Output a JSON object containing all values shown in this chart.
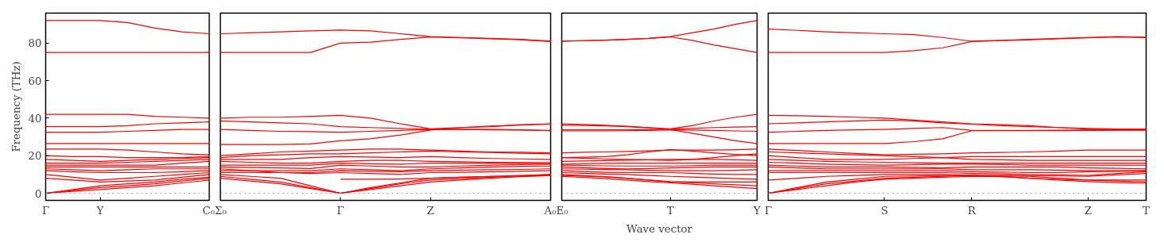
{
  "chart_data": [
    {
      "type": "line",
      "ylabel": "Frequency (THz)",
      "ylim": [
        -3.8,
        96
      ],
      "yticks": [
        0,
        20,
        40,
        60,
        80
      ],
      "categories": [
        "Γ",
        null,
        "Y",
        null,
        null,
        null,
        "C₀"
      ],
      "grid": false,
      "ref_lines": [
        {
          "axis": "y",
          "value": 0,
          "color": "#8080ff",
          "line_style": "dotted"
        }
      ],
      "series": [
        {
          "color": "#ff0000",
          "values": [
            92,
            92,
            92,
            91,
            88,
            86,
            85
          ]
        },
        {
          "color": "#ff0000",
          "values": [
            75,
            75,
            75,
            75,
            75,
            75,
            75
          ]
        },
        {
          "color": "#ff0000",
          "values": [
            42,
            42,
            42,
            42,
            41,
            40.5,
            40
          ]
        },
        {
          "color": "#ff0000",
          "values": [
            35.5,
            35.5,
            35.5,
            36,
            37,
            37.5,
            38
          ]
        },
        {
          "color": "#ff0000",
          "values": [
            32.5,
            32.5,
            32.5,
            33,
            33.5,
            34,
            34
          ]
        },
        {
          "color": "#ff0000",
          "values": [
            26.5,
            26.5,
            26.5,
            26.5,
            26.5,
            26.5,
            26.5
          ]
        },
        {
          "color": "#ff0000",
          "values": [
            23.5,
            23.5,
            23.5,
            23,
            22,
            21,
            20.5
          ]
        },
        {
          "color": "#ff0000",
          "values": [
            20,
            19.5,
            19.5,
            19,
            19,
            19,
            19.5
          ]
        },
        {
          "color": "#ff0000",
          "values": [
            18,
            17.5,
            17,
            17.5,
            18,
            18.5,
            19
          ]
        },
        {
          "color": "#ff0000",
          "values": [
            16,
            16,
            16,
            16.5,
            17,
            17.5,
            18
          ]
        },
        {
          "color": "#ff0000",
          "values": [
            15,
            15,
            15,
            15,
            15,
            16,
            17
          ]
        },
        {
          "color": "#ff0000",
          "values": [
            14,
            14,
            14,
            14,
            14,
            14,
            14
          ]
        },
        {
          "color": "#ff0000",
          "values": [
            13,
            12.5,
            12,
            12.5,
            13,
            13,
            13
          ]
        },
        {
          "color": "#ff0000",
          "values": [
            12,
            11.5,
            11,
            11,
            11,
            11.5,
            12
          ]
        },
        {
          "color": "#ff0000",
          "values": [
            10,
            8.5,
            7,
            8,
            9,
            10,
            11
          ]
        },
        {
          "color": "#ff0000",
          "values": [
            8,
            7,
            6,
            6.5,
            7,
            8.5,
            10
          ]
        },
        {
          "color": "#ff0000",
          "values": [
            0,
            2,
            4,
            5,
            6,
            7.5,
            8.5
          ]
        },
        {
          "color": "#ff0000",
          "values": [
            0,
            1.5,
            3,
            4,
            5,
            6.5,
            8
          ]
        },
        {
          "color": "#ff0000",
          "values": [
            0,
            1,
            2,
            3,
            4,
            5.5,
            7
          ]
        }
      ]
    },
    {
      "type": "line",
      "ylim": [
        -3.8,
        96
      ],
      "tick_labels": "x",
      "categories": [
        "Σ₀",
        null,
        null,
        null,
        "Γ",
        null,
        null,
        "Z",
        null,
        null,
        null,
        "A₀"
      ],
      "grid": false,
      "ref_lines": [
        {
          "axis": "y",
          "value": 0,
          "color": "#8080ff",
          "line_style": "dotted"
        }
      ],
      "series": [
        {
          "color": "#ff0000",
          "values": [
            85,
            85.5,
            86,
            86.5,
            87,
            86.5,
            85,
            83.5,
            83,
            82.5,
            82,
            81
          ]
        },
        {
          "color": "#ff0000",
          "values": [
            75,
            75,
            75,
            75,
            80,
            80.5,
            82,
            83.3,
            82.8,
            82.3,
            81.8,
            80.8
          ]
        },
        {
          "color": "#ff0000",
          "values": [
            40,
            40.5,
            40.5,
            41,
            41.5,
            40,
            37,
            34.3,
            35,
            35.5,
            36.5,
            37
          ]
        },
        {
          "color": "#ff0000",
          "values": [
            38.5,
            38,
            37.5,
            37,
            35.5,
            35,
            34.5,
            34.1,
            34,
            33.8,
            33.7,
            33.5
          ]
        },
        {
          "color": "#ff0000",
          "values": [
            34,
            33.5,
            33,
            32.8,
            32.5,
            33,
            33.5,
            33.9,
            34,
            34,
            33.8,
            33.3
          ]
        },
        {
          "color": "#ff0000",
          "values": [
            26,
            26,
            26,
            26.3,
            28,
            29,
            31,
            33.7,
            35,
            35.8,
            36.3,
            36.8
          ]
        },
        {
          "color": "#ff0000",
          "values": [
            20,
            21,
            22,
            22.5,
            23,
            23.5,
            23.5,
            23,
            22.5,
            22,
            21.8,
            21.5
          ]
        },
        {
          "color": "#ff0000",
          "values": [
            19,
            20,
            20.5,
            21,
            21,
            21.5,
            22,
            22.5,
            22,
            21.7,
            21.3,
            21
          ]
        },
        {
          "color": "#ff0000",
          "values": [
            18,
            18,
            18,
            19,
            19.5,
            19.3,
            19,
            19.5,
            19,
            18.5,
            18.3,
            18
          ]
        },
        {
          "color": "#ff0000",
          "values": [
            17,
            16.5,
            16,
            16,
            17,
            17.5,
            17.5,
            17,
            16.8,
            16.5,
            16.3,
            16.2
          ]
        },
        {
          "color": "#ff0000",
          "values": [
            15,
            15,
            15,
            15,
            16,
            15.7,
            15.5,
            16,
            16,
            16,
            16,
            15.8
          ]
        },
        {
          "color": "#ff0000",
          "values": [
            14,
            13.7,
            13.5,
            13.2,
            15,
            14.5,
            14,
            14,
            14.5,
            15,
            15.3,
            15.5
          ]
        },
        {
          "color": "#ff0000",
          "values": [
            12,
            12,
            12,
            12,
            13,
            12.5,
            12,
            13,
            13.5,
            14,
            14.3,
            14.5
          ]
        },
        {
          "color": "#ff0000",
          "values": [
            11,
            11,
            11,
            11,
            12,
            11.7,
            11.5,
            12,
            12.3,
            12.5,
            12.7,
            13
          ]
        },
        {
          "color": "#ff0000",
          "values": [
            13,
            12,
            11,
            10.5,
            11,
            10.5,
            10,
            11,
            11.2,
            11.5,
            11.7,
            12
          ]
        },
        {
          "color": "#ff0000",
          "values": [
            10,
            9,
            8,
            4,
            0,
            2.5,
            5,
            7,
            7.8,
            8.5,
            9.3,
            10
          ]
        },
        {
          "color": "#ff0000",
          "values": [
            9,
            7.5,
            6,
            3,
            0,
            2,
            4,
            6,
            7,
            8,
            8.8,
            9.5
          ]
        },
        {
          "color": "#ff0000",
          "values": [
            8,
            6.5,
            5,
            2.5,
            0,
            3,
            5.5,
            8,
            8.5,
            9,
            9.2,
            9.4
          ]
        },
        {
          "color": "#ff0000",
          "values": [
            null,
            null,
            null,
            null,
            7.5,
            7.5,
            7.6,
            8,
            8.5,
            9,
            9.5,
            10
          ]
        }
      ]
    },
    {
      "type": "line",
      "xlabel": "Wave vector",
      "ylim": [
        -3.8,
        96
      ],
      "tick_labels": "x",
      "categories": [
        "E₀",
        null,
        null,
        null,
        null,
        "T",
        null,
        null,
        null,
        "Y"
      ],
      "grid": false,
      "ref_lines": [
        {
          "axis": "y",
          "value": 0,
          "color": "#8080ff",
          "line_style": "dotted"
        }
      ],
      "series": [
        {
          "color": "#ff0000",
          "values": [
            81,
            81.3,
            81.6,
            82,
            82.5,
            83.5,
            85.5,
            87.5,
            90,
            92
          ]
        },
        {
          "color": "#ff0000",
          "values": [
            81,
            81.3,
            81.6,
            82,
            82.5,
            83.3,
            81.5,
            79,
            77,
            75
          ]
        },
        {
          "color": "#ff0000",
          "values": [
            37,
            36.6,
            36.2,
            35.7,
            35,
            34.3,
            36,
            38.5,
            40.5,
            42
          ]
        },
        {
          "color": "#ff0000",
          "values": [
            33.8,
            33.8,
            33.8,
            33.8,
            33.9,
            34.1,
            34.5,
            35,
            35.3,
            35.5
          ]
        },
        {
          "color": "#ff0000",
          "values": [
            33.2,
            33.2,
            33.2,
            33.3,
            33.5,
            33.8,
            33.7,
            33.5,
            33.2,
            33
          ]
        },
        {
          "color": "#ff0000",
          "values": [
            36.3,
            36.1,
            35.9,
            35.5,
            34.8,
            33.9,
            32,
            30,
            28,
            26.5
          ]
        },
        {
          "color": "#ff0000",
          "values": [
            21.5,
            21.8,
            22,
            22.3,
            22.6,
            23,
            23,
            23,
            23.2,
            23.5
          ]
        },
        {
          "color": "#ff0000",
          "values": [
            19,
            19.2,
            19.5,
            20.5,
            22,
            23.2,
            22.5,
            21.5,
            20.7,
            20
          ]
        },
        {
          "color": "#ff0000",
          "values": [
            19,
            18.7,
            18.3,
            18,
            17.8,
            17.5,
            18,
            19,
            20,
            21
          ]
        },
        {
          "color": "#ff0000",
          "values": [
            17,
            17.2,
            17.4,
            17.6,
            17.8,
            18,
            18,
            18,
            17.8,
            17.5
          ]
        },
        {
          "color": "#ff0000",
          "values": [
            15.5,
            15.7,
            15.9,
            16,
            16,
            16,
            16,
            16,
            16,
            16
          ]
        },
        {
          "color": "#ff0000",
          "values": [
            15,
            14.8,
            14.6,
            14.5,
            14.5,
            14.5,
            14.7,
            15,
            15,
            15
          ]
        },
        {
          "color": "#ff0000",
          "values": [
            14,
            13.6,
            13.2,
            13,
            13.2,
            13.5,
            13.7,
            14,
            14,
            14
          ]
        },
        {
          "color": "#ff0000",
          "values": [
            13,
            12.8,
            12.6,
            12.5,
            12.2,
            12,
            12,
            12,
            12.2,
            12.5
          ]
        },
        {
          "color": "#ff0000",
          "values": [
            12,
            11.6,
            11.2,
            11,
            11,
            11,
            10.6,
            10.2,
            10,
            10
          ]
        },
        {
          "color": "#ff0000",
          "values": [
            11,
            10.6,
            10.2,
            10,
            9.5,
            9,
            8.6,
            8.2,
            7.8,
            7.5
          ]
        },
        {
          "color": "#ff0000",
          "values": [
            10,
            9.4,
            8.8,
            8,
            7,
            6,
            5.5,
            5,
            4.5,
            4
          ]
        },
        {
          "color": "#ff0000",
          "values": [
            9,
            8.4,
            7.8,
            7,
            6.2,
            5.5,
            4.8,
            4,
            3.2,
            2.5
          ]
        },
        {
          "color": "#ff0000",
          "values": [
            9.5,
            9.1,
            8.7,
            8,
            7,
            6.2,
            6,
            6,
            6,
            6
          ]
        }
      ]
    },
    {
      "type": "line",
      "ylim": [
        -3.8,
        96
      ],
      "tick_labels": "x",
      "categories": [
        "Γ",
        null,
        null,
        null,
        "S",
        null,
        null,
        "R",
        null,
        null,
        null,
        "Z",
        null,
        "T"
      ],
      "grid": false,
      "ref_lines": [
        {
          "axis": "y",
          "value": 0,
          "color": "#8080ff",
          "line_style": "dotted"
        }
      ],
      "series": [
        {
          "color": "#ff0000",
          "values": [
            87.5,
            86.8,
            86,
            85.5,
            85,
            84.5,
            83,
            81,
            81.5,
            82,
            82.5,
            83,
            83.5,
            83.2
          ]
        },
        {
          "color": "#ff0000",
          "values": [
            75,
            75,
            75,
            75,
            75,
            76,
            77.5,
            80.8,
            81.3,
            81.8,
            82.3,
            82.8,
            83.3,
            82.9
          ]
        },
        {
          "color": "#ff0000",
          "values": [
            41.5,
            41.3,
            41,
            40.5,
            40,
            39,
            38,
            37,
            36.5,
            36,
            35,
            34.2,
            34,
            33.8
          ]
        },
        {
          "color": "#ff0000",
          "values": [
            37,
            37.5,
            38,
            38.5,
            39,
            38.5,
            37.5,
            36.8,
            36,
            35.5,
            35,
            34.5,
            34.2,
            34.2
          ]
        },
        {
          "color": "#ff0000",
          "values": [
            32.5,
            33,
            33.5,
            33.8,
            34,
            34.5,
            35,
            33.5,
            33.5,
            33.5,
            33.6,
            33.7,
            33.8,
            33.9
          ]
        },
        {
          "color": "#ff0000",
          "values": [
            26.5,
            26.5,
            26.5,
            26.5,
            26.5,
            27.5,
            29,
            33.3,
            33.3,
            33.3,
            33.4,
            33.5,
            33.6,
            33.6
          ]
        },
        {
          "color": "#ff0000",
          "values": [
            23.5,
            22.8,
            22,
            21.2,
            20.5,
            20.8,
            21,
            21.5,
            21.7,
            22,
            22.5,
            23,
            23,
            23
          ]
        },
        {
          "color": "#ff0000",
          "values": [
            22,
            21.5,
            21,
            20.5,
            20,
            19.5,
            19,
            19.5,
            19.5,
            19.5,
            19.5,
            19.5,
            19.5,
            19.5
          ]
        },
        {
          "color": "#ff0000",
          "values": [
            20,
            19,
            18,
            18,
            18,
            18.5,
            19,
            18,
            17.8,
            17.5,
            17.5,
            17.5,
            17.5,
            17.5
          ]
        },
        {
          "color": "#ff0000",
          "values": [
            18,
            17.5,
            17,
            16.7,
            16.5,
            16.2,
            16,
            16,
            16,
            16,
            16,
            16,
            16,
            16
          ]
        },
        {
          "color": "#ff0000",
          "values": [
            16.5,
            16,
            15.5,
            15.2,
            15,
            15.2,
            15.5,
            15.5,
            15.3,
            15,
            15,
            15,
            15,
            15
          ]
        },
        {
          "color": "#ff0000",
          "values": [
            15,
            14.5,
            14,
            14,
            14,
            13.8,
            13.5,
            14,
            14,
            14,
            14,
            13.5,
            13.3,
            13
          ]
        },
        {
          "color": "#ff0000",
          "values": [
            14,
            13.5,
            13,
            13,
            13,
            13,
            13,
            12.5,
            12.5,
            12.5,
            12.3,
            12,
            12,
            12
          ]
        },
        {
          "color": "#ff0000",
          "values": [
            12,
            12,
            12,
            12,
            12,
            12,
            12,
            11.5,
            11.3,
            11,
            11,
            11.5,
            11.7,
            12
          ]
        },
        {
          "color": "#ff0000",
          "values": [
            11,
            11,
            11,
            11,
            11,
            11,
            11,
            10.5,
            10.3,
            10,
            9.8,
            9.5,
            10.5,
            11.5
          ]
        },
        {
          "color": "#ff0000",
          "values": [
            7,
            8,
            9,
            9.5,
            10,
            10,
            10,
            9.5,
            9.3,
            9,
            8,
            7,
            6.5,
            6
          ]
        },
        {
          "color": "#ff0000",
          "values": [
            0,
            2.5,
            5,
            6.5,
            8,
            8.5,
            9,
            9.5,
            9,
            8,
            7.4,
            7,
            7,
            7
          ]
        },
        {
          "color": "#ff0000",
          "values": [
            0,
            2,
            4,
            6,
            7.5,
            8,
            8.5,
            9,
            8.8,
            8,
            7,
            6.2,
            5.7,
            5.3
          ]
        },
        {
          "color": "#ff0000",
          "values": [
            0,
            3,
            6,
            7.5,
            9,
            9.2,
            9.5,
            9.5,
            9.5,
            9.3,
            9.2,
            9,
            9.8,
            10.5
          ]
        }
      ]
    }
  ]
}
